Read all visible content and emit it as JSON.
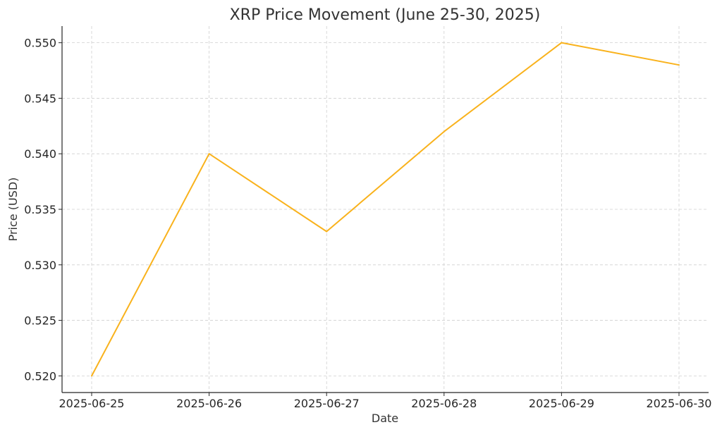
{
  "chart_data": {
    "type": "line",
    "title": "XRP Price Movement (June 25-30, 2025)",
    "xlabel": "Date",
    "ylabel": "Price (USD)",
    "categories": [
      "2025-06-25",
      "2025-06-26",
      "2025-06-27",
      "2025-06-28",
      "2025-06-29",
      "2025-06-30"
    ],
    "series": [
      {
        "values": [
          0.52,
          0.54,
          0.533,
          0.542,
          0.55,
          0.548
        ],
        "color": "#f9b21c"
      }
    ],
    "ylim": [
      0.5185,
      0.5515
    ],
    "yticks": [
      "0.520",
      "0.525",
      "0.530",
      "0.535",
      "0.540",
      "0.545",
      "0.550"
    ],
    "grid": true,
    "legend": "none"
  }
}
